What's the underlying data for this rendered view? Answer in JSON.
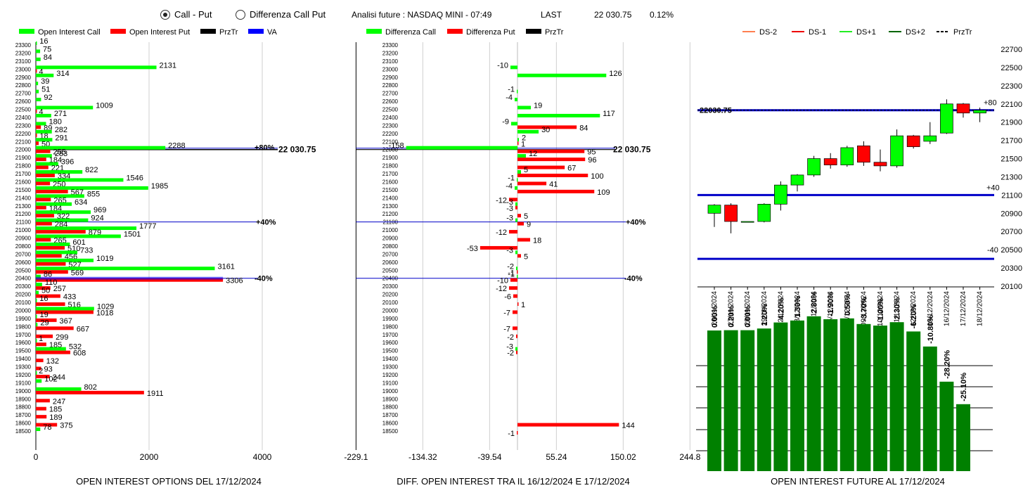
{
  "header": {
    "radio_call_put": "Call - Put",
    "radio_differenza": "Differenza Call Put",
    "selected": "call_put",
    "title": "Analisi future : NASDAQ MINI - 07:49",
    "last_label": "LAST",
    "last_value": "22 030.75",
    "change_pct": "0.12%"
  },
  "colors": {
    "call": "#00ff00",
    "put": "#ff0000",
    "przTr": "#000000",
    "va": "#0000ff",
    "future_bar": "#008000",
    "level_line": "#0000c8"
  },
  "strikes": [
    "23300",
    "23200",
    "23100",
    "23000",
    "22900",
    "22800",
    "22700",
    "22600",
    "22500",
    "22400",
    "22300",
    "22200",
    "22100",
    "22000",
    "21900",
    "21800",
    "21700",
    "21600",
    "21500",
    "21400",
    "21300",
    "21200",
    "21100",
    "21000",
    "20900",
    "20800",
    "20700",
    "20600",
    "20500",
    "20400",
    "20300",
    "20200",
    "20100",
    "20000",
    "19900",
    "19800",
    "19700",
    "19600",
    "19500",
    "19400",
    "19300",
    "19200",
    "19100",
    "19000",
    "18900",
    "18800",
    "18700",
    "18600",
    "18500"
  ],
  "panel1": {
    "legend": [
      "Open Interest Call",
      "Open Interest Put",
      "PrzTr",
      "VA"
    ],
    "caption": "OPEN INTEREST OPTIONS DEL 17/12/2024",
    "x_ticks": [
      "0",
      "2000",
      "4000"
    ],
    "annotations": {
      "p80": "+80%",
      "price": "22 030.75",
      "p40": "+40%",
      "m40": "-40%"
    }
  },
  "panel2": {
    "legend": [
      "Differenza Call",
      "Differenza Put",
      "PrzTr"
    ],
    "caption": "DIFF. OPEN INTEREST TRA IL 16/12/2024 E 17/12/2024",
    "x_ticks": [
      "-229.1",
      "-134.32",
      "-39.54",
      "55.24",
      "150.02",
      "244.8"
    ],
    "annotations": {
      "price": "22 030.75",
      "p40": "+40%",
      "m40": "-40%"
    }
  },
  "panel3": {
    "legend": [
      "DS-2",
      "DS-1",
      "DS+1",
      "DS+2",
      "PrzTr"
    ],
    "caption": "OPEN INTEREST FUTURE AL 17/12/2024",
    "price_label": "22030.75",
    "line_labels": {
      "p80": "+80",
      "p40": "+40",
      "m40": "-40"
    },
    "y_ticks": [
      "22700",
      "22500",
      "22300",
      "22100",
      "21900",
      "21700",
      "21500",
      "21300",
      "21100",
      "20900",
      "20700",
      "20500",
      "20300",
      "20100"
    ]
  },
  "chart_data": [
    {
      "type": "bar",
      "title": "OPEN INTEREST OPTIONS DEL 17/12/2024",
      "orientation": "horizontal",
      "categories": [
        "23300",
        "23200",
        "23100",
        "23000",
        "22900",
        "22800",
        "22700",
        "22600",
        "22500",
        "22400",
        "22300",
        "22200",
        "22100",
        "22000",
        "21900",
        "21800",
        "21700",
        "21600",
        "21500",
        "21400",
        "21300",
        "21200",
        "21100",
        "21000",
        "20900",
        "20800",
        "20700",
        "20600",
        "20500",
        "20400",
        "20300",
        "20200",
        "20100",
        "20000",
        "19900",
        "19800",
        "19700",
        "19600",
        "19500",
        "19400",
        "19300",
        "19200",
        "19100",
        "19000",
        "18900",
        "18800",
        "18700",
        "18600",
        "18500"
      ],
      "series": [
        {
          "name": "Open Interest Call",
          "values": [
            16,
            75,
            84,
            2131,
            314,
            39,
            51,
            92,
            1009,
            271,
            180,
            282,
            291,
            2288,
            283,
            396,
            822,
            1546,
            1985,
            855,
            634,
            969,
            924,
            1777,
            1501,
            601,
            733,
            1019,
            3161,
            86,
            110,
            50,
            16,
            1029,
            19,
            29,
            null,
            1,
            532,
            null,
            null,
            2,
            102,
            802,
            null,
            null,
            null,
            null,
            78
          ]
        },
        {
          "name": "Open Interest Put",
          "values": [
            null,
            null,
            null,
            4,
            null,
            null,
            null,
            null,
            4,
            null,
            89,
            18,
            50,
            255,
            184,
            221,
            334,
            250,
            567,
            265,
            184,
            322,
            284,
            879,
            265,
            510,
            456,
            527,
            569,
            3306,
            257,
            433,
            516,
            1018,
            367,
            667,
            299,
            185,
            608,
            132,
            93,
            244,
            null,
            1911,
            247,
            185,
            189,
            375,
            null
          ]
        }
      ],
      "xlim": [
        0,
        4300
      ],
      "markers": {
        "przTr_strike": "22000",
        "p80_strike": "22000",
        "p40_strike": "21100",
        "m40_strike": "20400"
      }
    },
    {
      "type": "bar",
      "title": "DIFF. OPEN INTEREST TRA IL 16/12/2024 E 17/12/2024",
      "orientation": "horizontal",
      "categories": [
        "23300",
        "23200",
        "23100",
        "23000",
        "22900",
        "22800",
        "22700",
        "22600",
        "22500",
        "22400",
        "22300",
        "22200",
        "22100",
        "22000",
        "21900",
        "21800",
        "21700",
        "21600",
        "21500",
        "21400",
        "21300",
        "21200",
        "21100",
        "21000",
        "20900",
        "20800",
        "20700",
        "20600",
        "20500",
        "20400",
        "20300",
        "20200",
        "20100",
        "20000",
        "19900",
        "19800",
        "19700",
        "19600",
        "19500",
        "19400",
        "19300",
        "19200",
        "19100",
        "19000",
        "18900",
        "18800",
        "18700",
        "18600",
        "18500"
      ],
      "series": [
        {
          "name": "Differenza Call",
          "values": [
            null,
            null,
            null,
            -10,
            126,
            null,
            -1,
            -4,
            19,
            117,
            -9,
            30,
            2,
            -158,
            12,
            null,
            5,
            -1,
            -4,
            null,
            -3,
            null,
            -3,
            null,
            null,
            null,
            -3,
            null,
            -2,
            -1,
            null,
            null,
            null,
            null,
            null,
            null,
            null,
            null,
            -3,
            null,
            null,
            null,
            null,
            null,
            null,
            null,
            null,
            null,
            null
          ]
        },
        {
          "name": "Differenza Put",
          "values": [
            null,
            null,
            null,
            null,
            null,
            null,
            null,
            null,
            null,
            null,
            84,
            null,
            1,
            95,
            96,
            67,
            100,
            41,
            109,
            -12,
            -3,
            5,
            9,
            -12,
            18,
            -53,
            5,
            null,
            -1,
            -10,
            -12,
            -6,
            1,
            -7,
            null,
            -7,
            -2,
            null,
            -2,
            null,
            null,
            null,
            null,
            null,
            null,
            null,
            null,
            144,
            -1
          ]
        }
      ],
      "xlim": [
        -229.1,
        244.8
      ]
    },
    {
      "type": "candlestick",
      "title": "",
      "categories": [
        "26/11/2024",
        "27/11/2024",
        "28/11/2024",
        "29/11/2024",
        "02/12/2024",
        "03/12/2024",
        "04/12/2024",
        "05/12/2024",
        "06/12/2024",
        "09/12/2024",
        "10/12/2024",
        "11/12/2024",
        "12/12/2024",
        "13/12/2024",
        "16/12/2024",
        "17/12/2024",
        "18/12/2024"
      ],
      "ohlc": [
        [
          20900,
          21000,
          20750,
          20990
        ],
        [
          20990,
          21010,
          20680,
          20810
        ],
        [
          20810,
          20810,
          20810,
          20810
        ],
        [
          20810,
          21010,
          20800,
          21000
        ],
        [
          21000,
          21250,
          20930,
          21210
        ],
        [
          21210,
          21330,
          21140,
          21320
        ],
        [
          21320,
          21530,
          21300,
          21500
        ],
        [
          21500,
          21560,
          21390,
          21430
        ],
        [
          21430,
          21640,
          21410,
          21620
        ],
        [
          21640,
          21690,
          21420,
          21460
        ],
        [
          21460,
          21600,
          21360,
          21420
        ],
        [
          21420,
          21820,
          21400,
          21750
        ],
        [
          21750,
          21760,
          21610,
          21630
        ],
        [
          21690,
          21900,
          21660,
          21750
        ],
        [
          21780,
          22150,
          21770,
          22100
        ],
        [
          22100,
          22110,
          21950,
          22000
        ],
        [
          22000,
          22060,
          21900,
          22030
        ]
      ],
      "ylim": [
        20100,
        22800
      ],
      "levels": {
        "przTr": 22030.75,
        "p80": 22030.75,
        "p40": 21100,
        "m40": 20400
      }
    },
    {
      "type": "bar",
      "title": "OPEN INTEREST FUTURE AL 17/12/2024",
      "categories": [
        "26/11/2024",
        "27/11/2024",
        "28/11/2024",
        "29/11/2024",
        "02/12/2024",
        "03/12/2024",
        "04/12/2024",
        "05/12/2024",
        "06/12/2024",
        "09/12/2024",
        "10/12/2024",
        "11/12/2024",
        "12/12/2024",
        "13/12/2024",
        "16/12/2024",
        "17/12/2024"
      ],
      "values": [
        0.0,
        0.2,
        0.0,
        1.2,
        4.2,
        1.3,
        2.8,
        -1.9,
        0.5,
        -3.7,
        -1.0,
        2.3,
        -6.2,
        -10.8,
        -28.2,
        -25.1
      ],
      "labels": [
        "0.00%",
        "0.20%",
        "0.00%",
        "1.20%",
        "4.20%",
        "1.30%",
        "2.80%",
        "-1.90%",
        "0.50%",
        "-3.70%",
        "-1.00%",
        "2.30%",
        "-6.20%",
        "-10.80%",
        "-28.20%",
        "-25.10%"
      ],
      "bar_levels": [
        100.0,
        100.2,
        100.2,
        101.4,
        105.7,
        107.1,
        110.1,
        108.0,
        108.6,
        104.6,
        103.5,
        105.9,
        99.3,
        88.6,
        63.6,
        47.6
      ]
    }
  ]
}
